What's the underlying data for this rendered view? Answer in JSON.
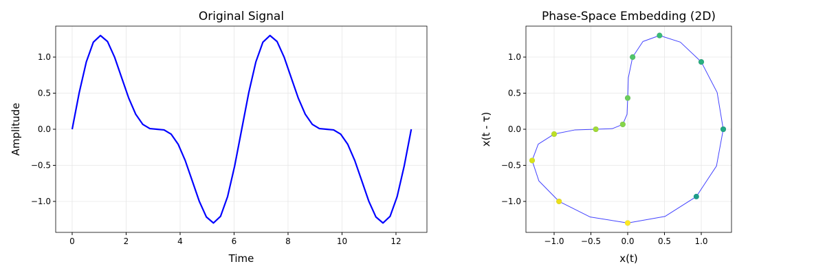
{
  "chart_data": [
    {
      "type": "line",
      "title": "Original Signal",
      "xlabel": "Time",
      "ylabel": "Amplitude",
      "x": [
        0,
        0.2618,
        0.5236,
        0.7854,
        1.0472,
        1.309,
        1.5708,
        1.8326,
        2.0944,
        2.3562,
        2.618,
        2.8798,
        3.1416,
        3.4034,
        3.6652,
        3.927,
        4.1888,
        4.4506,
        4.7124,
        4.9742,
        5.236,
        5.4978,
        5.7596,
        6.0214,
        6.2832,
        6.545,
        6.8068,
        7.0686,
        7.3304,
        7.5922,
        7.854,
        8.1158,
        8.3776,
        8.6394,
        8.9012,
        9.163,
        9.4248,
        9.6866,
        9.9484,
        10.2102,
        10.472,
        10.7338,
        10.9956,
        11.2574,
        11.5192,
        11.781,
        12.0428,
        12.3046,
        12.5664
      ],
      "series": [
        {
          "color": "#0000ff",
          "values": [
            0,
            0.509,
            0.933,
            1.207,
            1.299,
            1.216,
            1.0,
            0.716,
            0.433,
            0.207,
            0.067,
            0.009,
            0,
            -0.009,
            -0.067,
            -0.207,
            -0.433,
            -0.716,
            -1.0,
            -1.216,
            -1.299,
            -1.207,
            -0.933,
            -0.509,
            0,
            0.509,
            0.933,
            1.207,
            1.299,
            1.216,
            1.0,
            0.716,
            0.433,
            0.207,
            0.067,
            0.009,
            0,
            -0.009,
            -0.067,
            -0.207,
            -0.433,
            -0.716,
            -1.0,
            -1.216,
            -1.299,
            -1.207,
            -0.933,
            -0.509,
            0
          ]
        }
      ],
      "xlim": [
        -0.611,
        13.147
      ],
      "ylim": [
        -1.429,
        1.429
      ],
      "xticks": [
        0,
        2,
        4,
        6,
        8,
        10,
        12
      ],
      "yticks": [
        {
          "value": -1,
          "label": "−1.0"
        },
        {
          "value": -0.5,
          "label": "−0.5"
        },
        {
          "value": 0,
          "label": "0.0"
        },
        0.5,
        {
          "value": 1,
          "label": "1.0"
        }
      ],
      "grid": true
    },
    {
      "type": "scatter",
      "title": "Phase-Space Embedding (2D)",
      "xlabel": "x(t)",
      "ylabel": "x(t - τ)",
      "series": [
        {
          "type": "line",
          "color": "#0000ff",
          "x": [
            1.299,
            1.216,
            1.0,
            0.716,
            0.433,
            0.207,
            0.067,
            0.009,
            0,
            -0.009,
            -0.067,
            -0.207,
            -0.433,
            -0.716,
            -1.0,
            -1.216,
            -1.299,
            -1.207,
            -0.933,
            -0.509,
            0,
            0.509,
            0.933,
            1.207,
            1.299
          ],
          "values": [
            0,
            0.509,
            0.933,
            1.207,
            1.299,
            1.216,
            1.0,
            0.716,
            0.433,
            0.207,
            0.067,
            0.009,
            0,
            -0.009,
            -0.067,
            -0.207,
            -0.433,
            -0.716,
            -1.0,
            -1.216,
            -1.299,
            -1.207,
            -0.933,
            -0.509,
            0
          ]
        },
        {
          "type": "scatter",
          "x": [
            1.299,
            1.0,
            0.433,
            0.067,
            0,
            -0.067,
            -0.433,
            -1.0,
            -1.299,
            -0.933,
            0,
            0.933,
            1.299,
            1.0,
            0.433,
            0.067,
            0,
            -0.067,
            -0.433,
            -1.0,
            -1.299,
            -0.933,
            0
          ],
          "values": [
            0,
            0.933,
            1.299,
            1.0,
            0.433,
            0.067,
            0,
            -0.067,
            -0.433,
            -1.0,
            -1.299,
            -0.933,
            0,
            0.933,
            1.299,
            1.0,
            0.433,
            0.067,
            0,
            -0.067,
            -0.433,
            -1.0,
            -1.299
          ],
          "colors": [
            "#440154",
            "#471365",
            "#482475",
            "#463480",
            "#414487",
            "#3b528b",
            "#355f8d",
            "#2f6c8e",
            "#2a788e",
            "#25848e",
            "#21918c",
            "#1e9c89",
            "#20a884",
            "#2ab07f",
            "#3bbb75",
            "#52c569",
            "#6ccd5a",
            "#86d549",
            "#a2da37",
            "#bddf26",
            "#d8e219",
            "#ecdf1a",
            "#fde725"
          ]
        }
      ],
      "xlim": [
        -1.383,
        1.411
      ],
      "ylim": [
        -1.429,
        1.429
      ],
      "xticks": [
        {
          "value": -1,
          "label": "−1.0"
        },
        {
          "value": -0.5,
          "label": "−0.5"
        },
        {
          "value": 0,
          "label": "0.0"
        },
        0.5,
        {
          "value": 1,
          "label": "1.0"
        }
      ],
      "yticks": [
        {
          "value": -1,
          "label": "−1.0"
        },
        {
          "value": -0.5,
          "label": "−0.5"
        },
        {
          "value": 0,
          "label": "0.0"
        },
        0.5,
        {
          "value": 1,
          "label": "1.0"
        }
      ],
      "grid": true
    }
  ]
}
